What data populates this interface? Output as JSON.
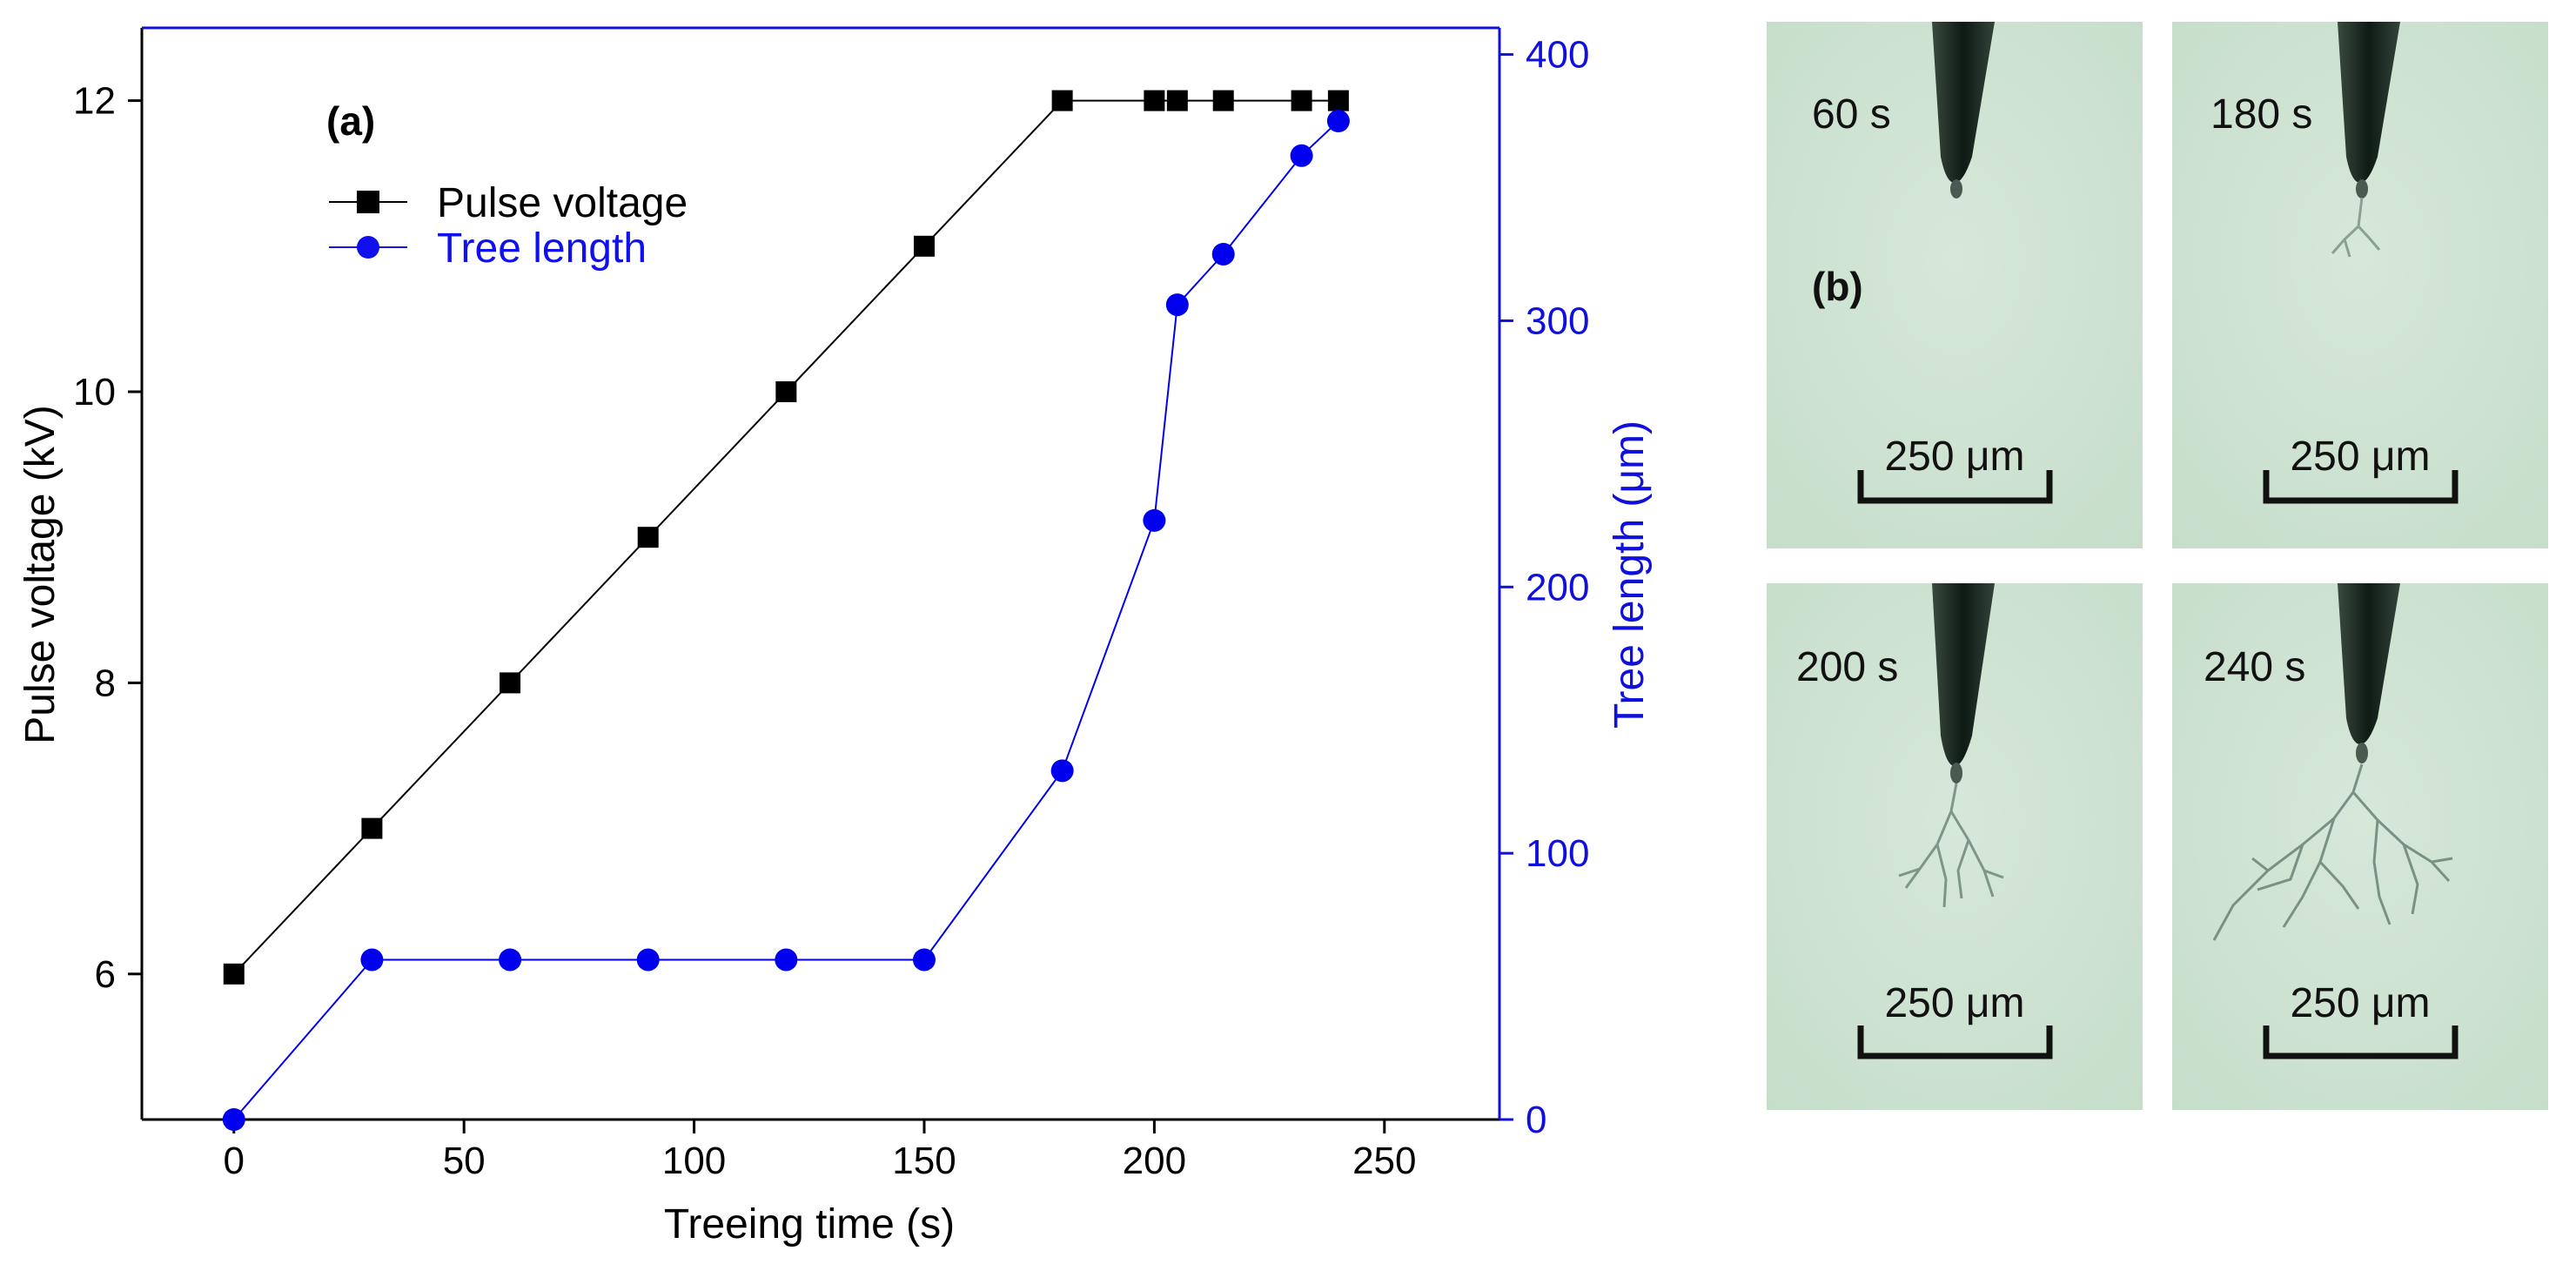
{
  "chart_data": {
    "type": "line",
    "panel_label": "(a)",
    "xlabel": "Treeing time (s)",
    "ylabel": "Pulse voltage (kV)",
    "y2label": "Tree length (μm)",
    "xlim": [
      -20,
      275
    ],
    "ylim": [
      5,
      12.5
    ],
    "y2lim": [
      0,
      410
    ],
    "xticks": [
      "0",
      "50",
      "100",
      "150",
      "200",
      "250"
    ],
    "yticks": [
      "6",
      "8",
      "10",
      "12"
    ],
    "y2ticks": [
      "0",
      "100",
      "200",
      "300",
      "400"
    ],
    "legend_position": "top-left",
    "series": [
      {
        "name": "Pulse voltage",
        "axis": "left",
        "color": "#000000",
        "marker": "square",
        "x": [
          0,
          30,
          60,
          90,
          120,
          150,
          180,
          200,
          205,
          215,
          232,
          240
        ],
        "y": [
          6,
          7,
          8,
          9,
          10,
          11,
          12,
          12,
          12,
          12,
          12,
          12
        ]
      },
      {
        "name": "Tree length",
        "axis": "right",
        "color": "#0000ee",
        "marker": "circle",
        "x": [
          0,
          30,
          60,
          90,
          120,
          150,
          180,
          200,
          205,
          215,
          232,
          240
        ],
        "y": [
          0,
          60,
          60,
          60,
          60,
          60,
          131,
          225,
          306,
          325,
          362,
          375
        ]
      }
    ]
  },
  "photos": {
    "panel_label": "(b)",
    "scale_label": "250 μm",
    "frames": [
      {
        "time": "60 s",
        "tree": "none"
      },
      {
        "time": "180 s",
        "tree": "small"
      },
      {
        "time": "200 s",
        "tree": "medium"
      },
      {
        "time": "240 s",
        "tree": "large"
      }
    ],
    "background_color": "#cfe4d2",
    "needle_color": "#17281f"
  }
}
